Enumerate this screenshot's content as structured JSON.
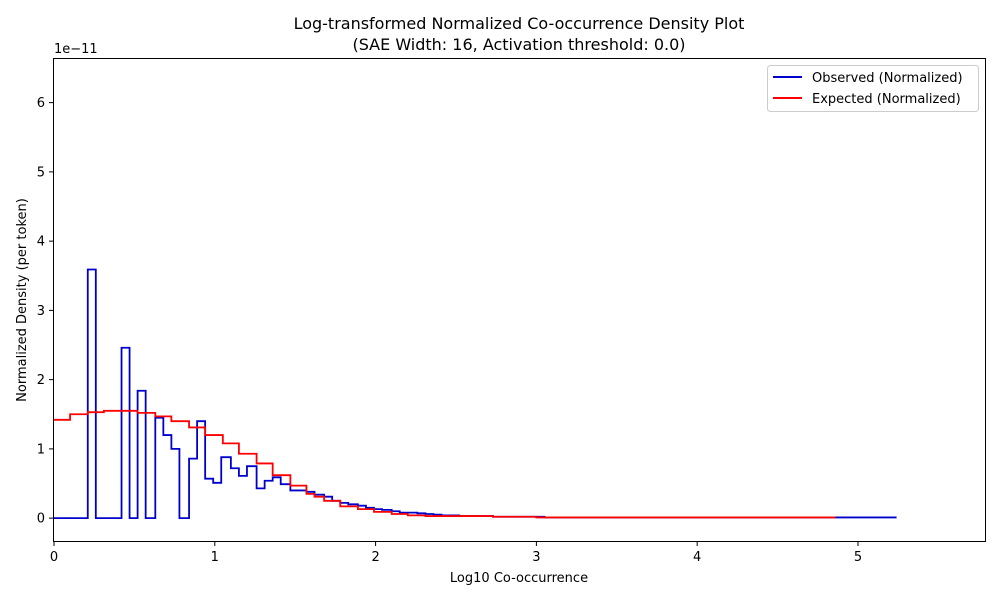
{
  "chart_data": {
    "type": "line",
    "title_line1": "Log-transformed Normalized Co-occurrence Density Plot",
    "title_line2": "(SAE Width: 16, Activation threshold: 0.0)",
    "xlabel": "Log10 Co-occurrence",
    "ylabel": "Normalized Density (per token)",
    "y_offset_label": "1e−11",
    "xlim": [
      0,
      5.79
    ],
    "ylim": [
      -0.33,
      6.63
    ],
    "x_ticks": [
      0,
      1,
      2,
      3,
      4,
      5
    ],
    "x_tick_labels": [
      "0",
      "1",
      "2",
      "3",
      "4",
      "5"
    ],
    "y_ticks": [
      0,
      1,
      2,
      3,
      4,
      5,
      6
    ],
    "y_tick_labels": [
      "0",
      "1",
      "2",
      "3",
      "4",
      "5",
      "6"
    ],
    "legend_position": "top-right",
    "grid": false,
    "series": [
      {
        "name": "Observed (Normalized)",
        "color": "#0000cc",
        "step": "post",
        "x": [
          0,
          0.21,
          0.26,
          0.42,
          0.47,
          0.52,
          0.57,
          0.63,
          0.68,
          0.73,
          0.78,
          0.84,
          0.89,
          0.94,
          0.99,
          1.04,
          1.1,
          1.15,
          1.2,
          1.26,
          1.31,
          1.36,
          1.41,
          1.47,
          1.52,
          1.57,
          1.62,
          1.68,
          1.73,
          1.78,
          1.83,
          1.89,
          1.94,
          1.99,
          2.04,
          2.1,
          2.15,
          2.2,
          2.26,
          2.31,
          2.36,
          2.41,
          2.47,
          2.52,
          2.57,
          2.62,
          2.68,
          2.73,
          3.05,
          3.23,
          3.3,
          4.0,
          5.24
        ],
        "values": [
          0,
          3.59,
          0,
          2.46,
          0,
          1.84,
          0,
          1.45,
          1.2,
          1.0,
          0,
          0.86,
          1.4,
          0.57,
          0.51,
          0.88,
          0.72,
          0.61,
          0.75,
          0.43,
          0.54,
          0.59,
          0.49,
          0.4,
          0.4,
          0.38,
          0.34,
          0.31,
          0.25,
          0.22,
          0.2,
          0.18,
          0.15,
          0.13,
          0.12,
          0.1,
          0.08,
          0.08,
          0.07,
          0.06,
          0.05,
          0.04,
          0.04,
          0.03,
          0.03,
          0.03,
          0.03,
          0.02,
          0.01,
          0.01,
          0.01,
          0.01,
          0.01
        ]
      },
      {
        "name": "Expected (Normalized)",
        "color": "#ff0000",
        "step": "post",
        "x": [
          0,
          0.1,
          0.21,
          0.31,
          0.52,
          0.63,
          0.73,
          0.84,
          0.94,
          1.05,
          1.15,
          1.26,
          1.36,
          1.47,
          1.57,
          1.62,
          1.68,
          1.78,
          1.89,
          1.99,
          2.1,
          2.2,
          2.31,
          2.41,
          2.52,
          2.62,
          2.73,
          3.0,
          3.3,
          4.0,
          4.86
        ],
        "values": [
          1.42,
          1.5,
          1.53,
          1.55,
          1.52,
          1.47,
          1.4,
          1.31,
          1.2,
          1.08,
          0.93,
          0.79,
          0.62,
          0.47,
          0.35,
          0.31,
          0.25,
          0.17,
          0.13,
          0.09,
          0.06,
          0.04,
          0.03,
          0.03,
          0.03,
          0.03,
          0.02,
          0.01,
          0.01,
          0.01,
          0.01
        ]
      }
    ]
  }
}
